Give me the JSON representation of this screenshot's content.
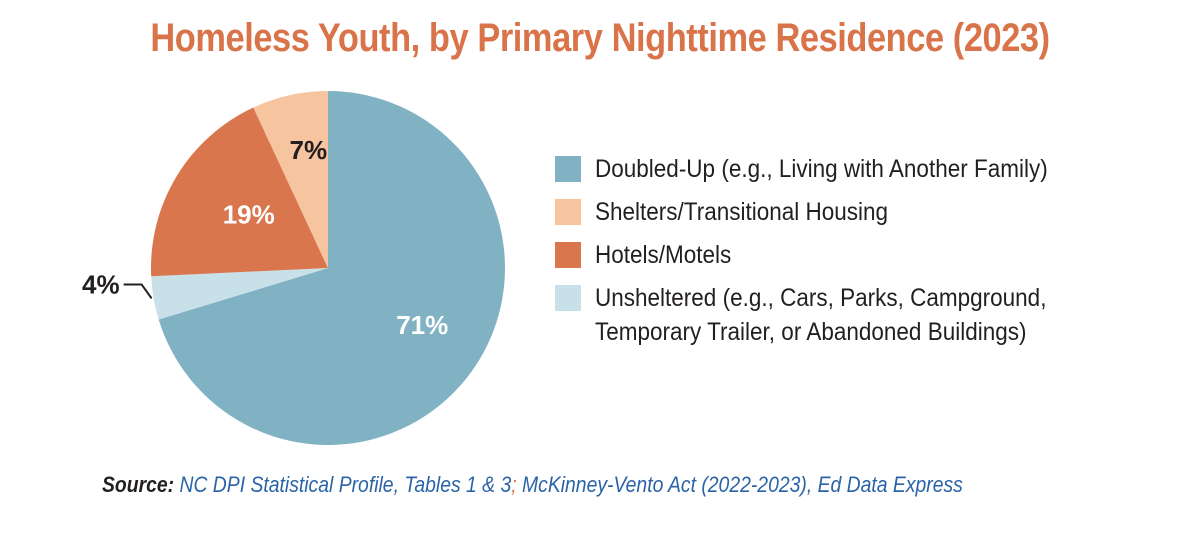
{
  "chart_data": {
    "type": "pie",
    "title": "Homeless Youth, by Primary Nighttime Residence (2023)",
    "start_angle_deg": 0,
    "direction": "clockwise",
    "slices": [
      {
        "label": "Doubled-Up (e.g., Living with Another Family)",
        "value": 71,
        "display": "71%",
        "color": "#80b2c4"
      },
      {
        "label": "Unsheltered (e.g., Cars, Parks, Campground,\nTemporary Trailer, or Abandoned Buildings)",
        "value": 4,
        "display": "4%",
        "color": "#c8e1e9"
      },
      {
        "label": "Hotels/Motels",
        "value": 19,
        "display": "19%",
        "color": "#d9764d"
      },
      {
        "label": "Shelters/Transitional Housing",
        "value": 7,
        "display": "7%",
        "color": "#f7c4a0"
      }
    ],
    "legend_order": [
      0,
      3,
      2,
      1
    ],
    "legend_placement": "right"
  },
  "source": {
    "label": "Source:",
    "part1": " NC DPI Statistical Profile, Tables 1 & 3",
    "separator": ";",
    "part2": " McKinney-Vento Act (2022-2023), Ed Data Express"
  }
}
